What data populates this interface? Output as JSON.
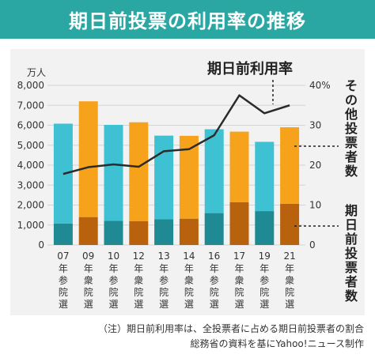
{
  "title": "期日前投票の利用率の推移",
  "footnote": {
    "line1": "（注）期日前利用率は、全投票者に占める期日前投票者の割合",
    "line2": "総務省の資料を基にYahoo!ニュース制作"
  },
  "colors": {
    "header": "#2aa7a3",
    "sanin_other": "#3fc1d4",
    "shugin_other": "#f7a21b",
    "sanin_early": "#1f8a93",
    "shugin_early": "#b8620d",
    "line": "#2b2b2b"
  },
  "chart_data": {
    "type": "bar",
    "stacked": true,
    "categories": [
      "07年参院選",
      "09年衆院選",
      "10年参院選",
      "12年衆院選",
      "13年参院選",
      "14年衆院選",
      "16年参院選",
      "17年衆院選",
      "19年参院選",
      "21年衆院選"
    ],
    "category_year": [
      "07",
      "09",
      "10",
      "12",
      "13",
      "14",
      "16",
      "17",
      "19",
      "21"
    ],
    "category_year_suffix": "年",
    "category_type": [
      "参院選",
      "衆院選",
      "参院選",
      "衆院選",
      "参院選",
      "衆院選",
      "参院選",
      "衆院選",
      "参院選",
      "衆院選"
    ],
    "ylabel_left": "万人",
    "ylim_left": [
      0,
      8000
    ],
    "yticks_left": [
      "0",
      "1,000",
      "2,000",
      "3,000",
      "4,000",
      "5,000",
      "6,000",
      "7,000",
      "8,000"
    ],
    "ylim_right": [
      0,
      40
    ],
    "yticks_right": [
      "0",
      "10",
      "20",
      "30",
      "40%"
    ],
    "series": [
      {
        "name": "期日前投票者数",
        "axis": "left",
        "values": [
          1080,
          1400,
          1210,
          1200,
          1290,
          1320,
          1600,
          2140,
          1700,
          2060
        ]
      },
      {
        "name": "その他投票者数",
        "axis": "left",
        "values": [
          5000,
          5800,
          4810,
          4950,
          4190,
          4150,
          4200,
          3540,
          3470,
          3840
        ]
      },
      {
        "name": "期日前利用率",
        "type": "line",
        "axis": "right",
        "values": [
          17.8,
          19.5,
          20.2,
          19.6,
          23.5,
          24.0,
          27.5,
          37.5,
          33.0,
          35.0
        ]
      }
    ],
    "annotations": {
      "line_label": "期日前利用率",
      "other_label": "その他投票者数",
      "early_label": "期日前投票者数"
    },
    "grid": true
  }
}
